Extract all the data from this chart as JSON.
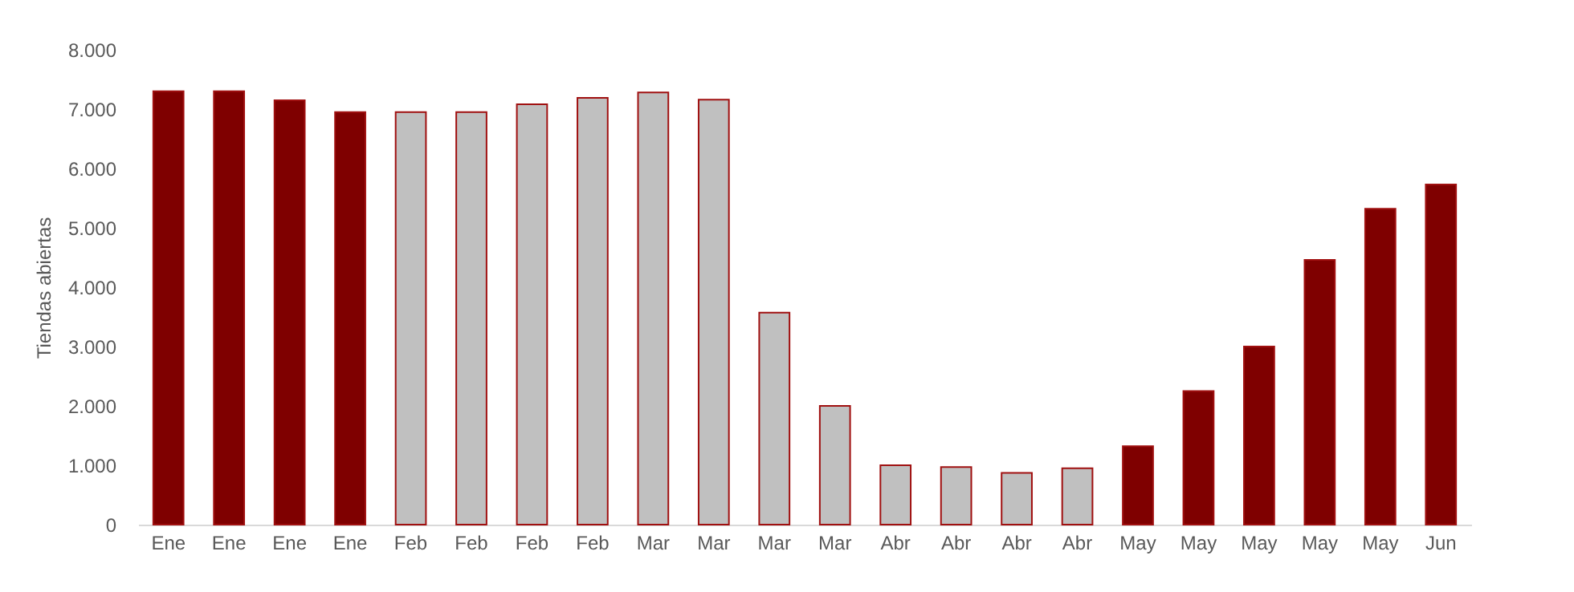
{
  "chart_data": {
    "type": "bar",
    "ylabel": "Tiendas abiertas",
    "categories": [
      "Ene",
      "Ene",
      "Ene",
      "Ene",
      "Feb",
      "Feb",
      "Feb",
      "Feb",
      "Mar",
      "Mar",
      "Mar",
      "Mar",
      "Abr",
      "Abr",
      "Abr",
      "Abr",
      "May",
      "May",
      "May",
      "May",
      "May",
      "Jun"
    ],
    "values": [
      7300,
      7300,
      7150,
      6950,
      6950,
      6950,
      7080,
      7190,
      7280,
      7160,
      3570,
      2000,
      1000,
      970,
      870,
      950,
      1320,
      2250,
      3000,
      4460,
      5320,
      5730
    ],
    "colors": [
      "#7f0000",
      "#7f0000",
      "#7f0000",
      "#7f0000",
      "#c0c0c0",
      "#c0c0c0",
      "#c0c0c0",
      "#c0c0c0",
      "#c0c0c0",
      "#c0c0c0",
      "#c0c0c0",
      "#c0c0c0",
      "#c0c0c0",
      "#c0c0c0",
      "#c0c0c0",
      "#c0c0c0",
      "#7f0000",
      "#7f0000",
      "#7f0000",
      "#7f0000",
      "#7f0000",
      "#7f0000"
    ],
    "ylim": [
      0,
      8000
    ],
    "yticks": [
      {
        "value": 0,
        "label": "0"
      },
      {
        "value": 1000,
        "label": "1.000"
      },
      {
        "value": 2000,
        "label": "2.000"
      },
      {
        "value": 3000,
        "label": "3.000"
      },
      {
        "value": 4000,
        "label": "4.000"
      },
      {
        "value": 5000,
        "label": "5.000"
      },
      {
        "value": 6000,
        "label": "6.000"
      },
      {
        "value": 7000,
        "label": "7.000"
      },
      {
        "value": 8000,
        "label": "8.000"
      }
    ],
    "grid": false
  }
}
